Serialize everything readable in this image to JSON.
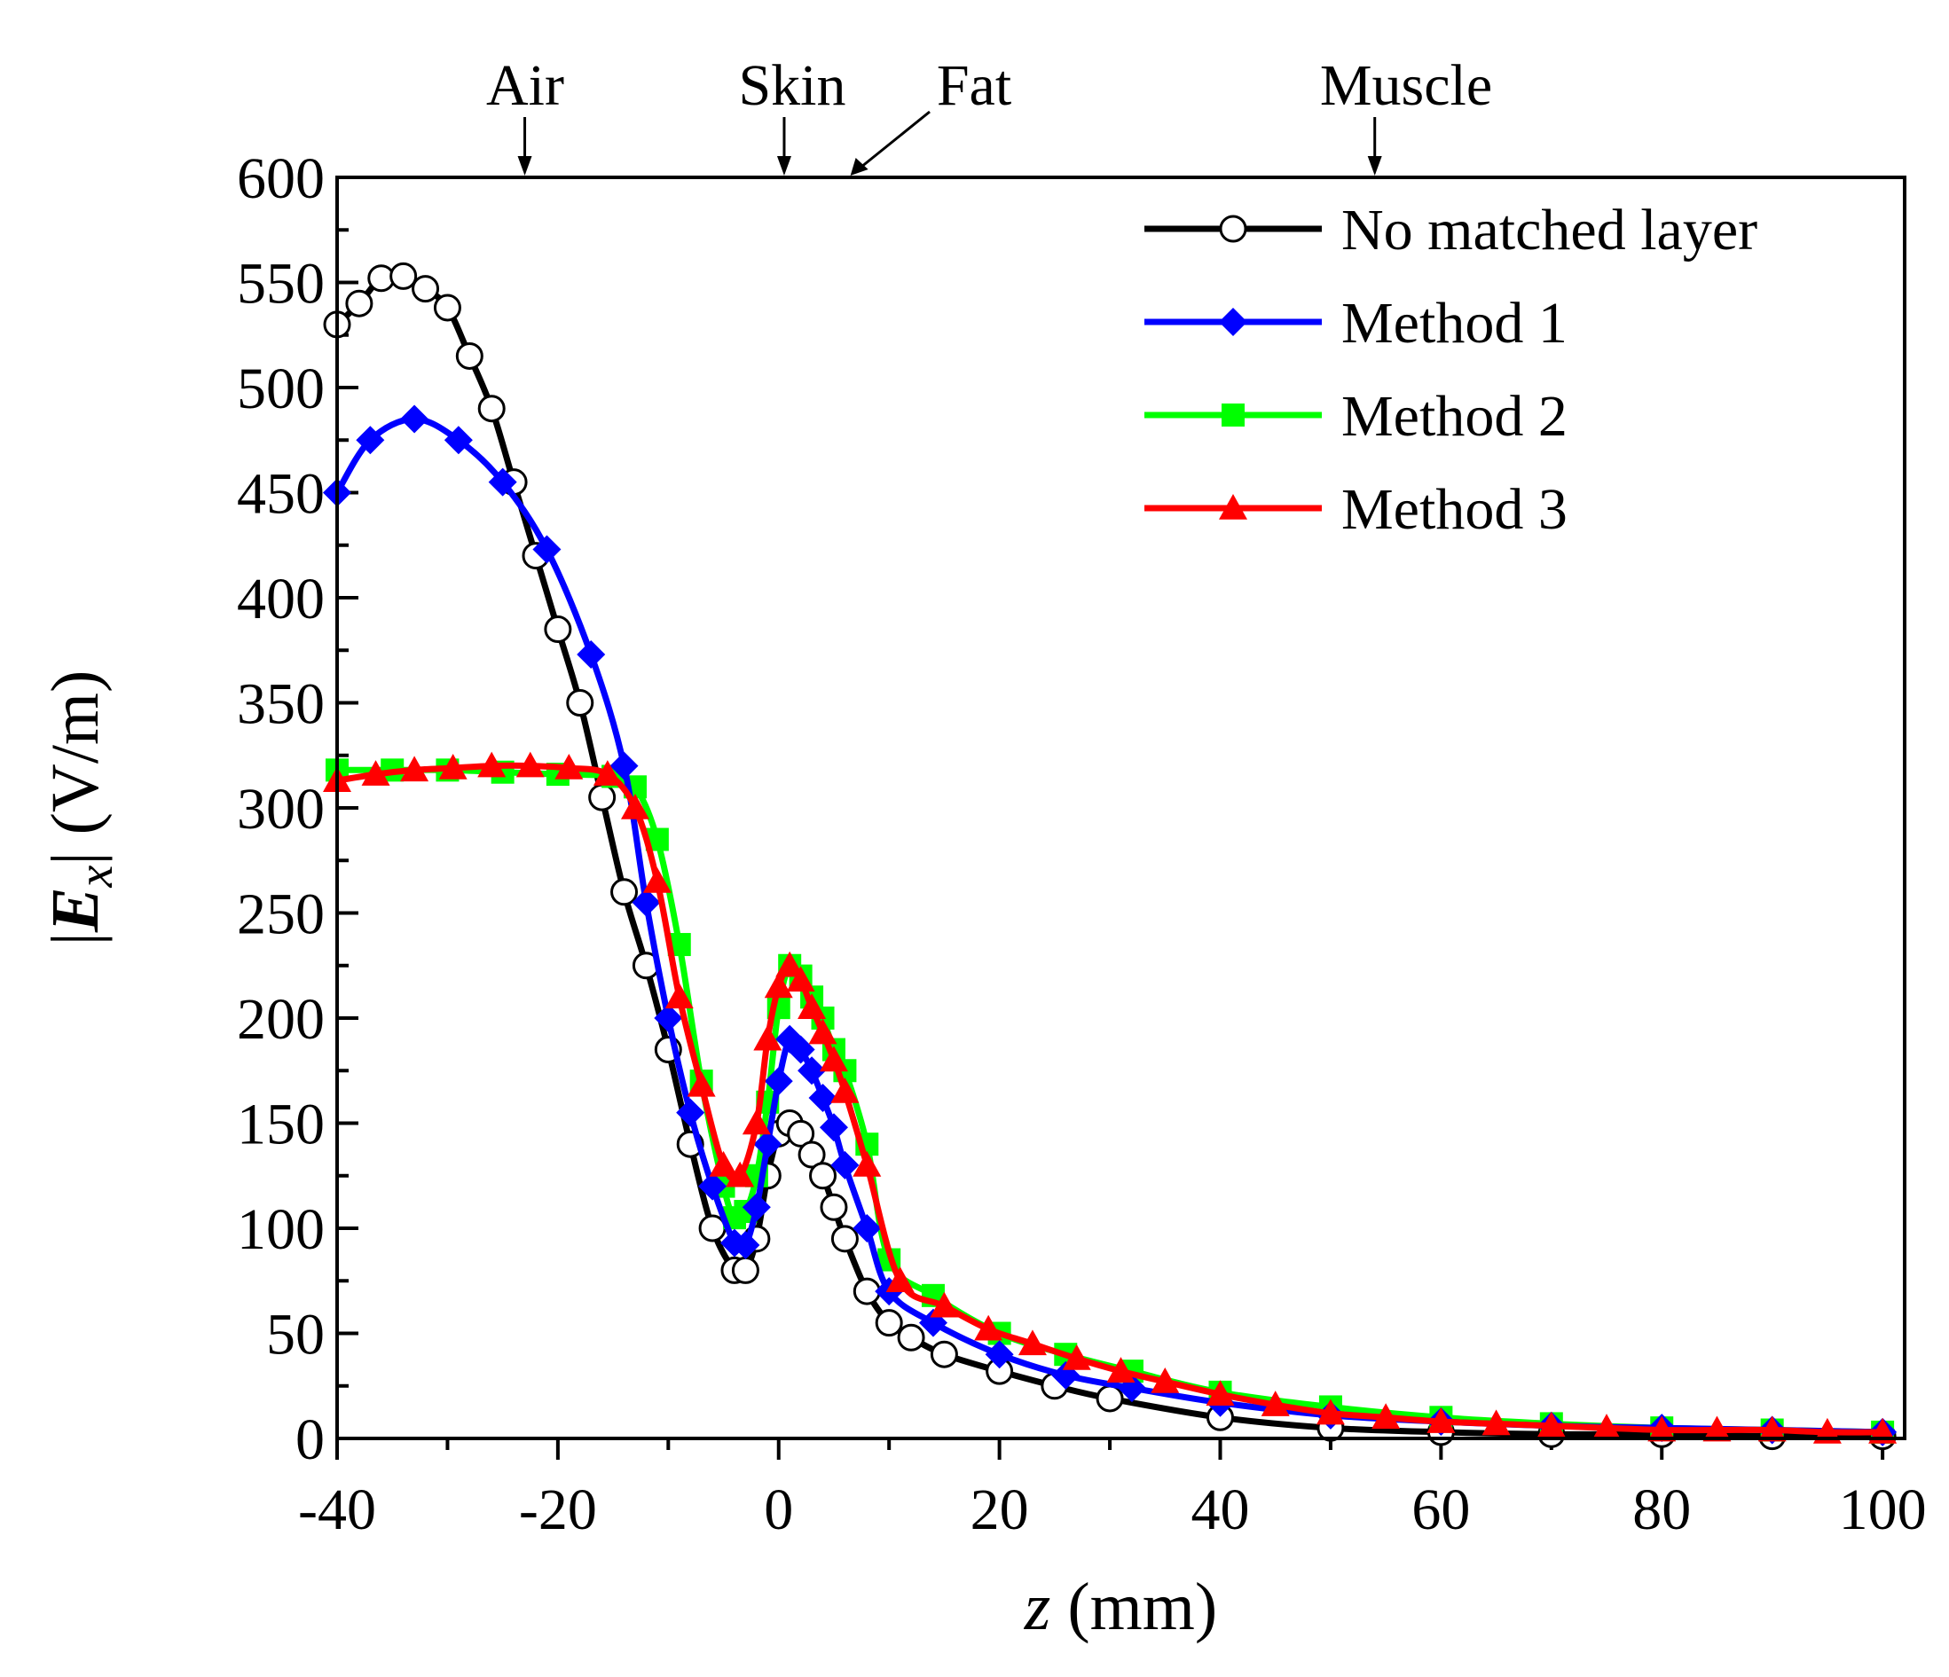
{
  "chart_data": {
    "type": "line",
    "title": "",
    "xlabel": "z (mm)",
    "xlabel_parts": {
      "var": "z",
      "unit": " (mm)"
    },
    "ylabel": "|Ex| (V/m)",
    "ylabel_parts": {
      "bar_open": "|",
      "var": "E",
      "sub": "x",
      "bar_close": "|",
      "unit": " (V/m)"
    },
    "xlim": [
      -40,
      102
    ],
    "ylim": [
      0,
      600
    ],
    "xticks": [
      -40,
      -20,
      0,
      20,
      40,
      60,
      80,
      100
    ],
    "yticks": [
      0,
      50,
      100,
      150,
      200,
      250,
      300,
      350,
      400,
      450,
      500,
      550,
      600
    ],
    "grid": false,
    "legend_position": "top-right",
    "layer_annotations": [
      {
        "label": "Air",
        "z": -23
      },
      {
        "label": "Skin",
        "z": 0.5
      },
      {
        "label": "Fat",
        "z": 6.5
      },
      {
        "label": "Muscle",
        "z": 54
      }
    ],
    "series": [
      {
        "name": "No matched layer",
        "color": "#000000",
        "marker": "circle",
        "marker_fill": "#ffffff",
        "x": [
          -40,
          -38,
          -36,
          -34,
          -32,
          -30,
          -28,
          -26,
          -24,
          -22,
          -20,
          -18,
          -16,
          -14,
          -12,
          -10,
          -8,
          -6,
          -4,
          -3,
          -2,
          -1,
          0,
          1,
          2,
          3,
          4,
          5,
          6,
          8,
          10,
          12,
          15,
          20,
          25,
          30,
          40,
          50,
          60,
          70,
          80,
          90,
          100
        ],
        "values": [
          530,
          540,
          552,
          553,
          547,
          538,
          515,
          490,
          455,
          420,
          385,
          350,
          305,
          260,
          225,
          185,
          140,
          100,
          80,
          80,
          95,
          125,
          145,
          150,
          145,
          135,
          125,
          110,
          95,
          70,
          55,
          48,
          40,
          32,
          25,
          19,
          10,
          5,
          3,
          2,
          2,
          1,
          1
        ]
      },
      {
        "name": "Method 1",
        "color": "#0000ff",
        "marker": "diamond",
        "x": [
          -40,
          -37,
          -33,
          -29,
          -25,
          -21,
          -17,
          -14,
          -12,
          -10,
          -8,
          -6,
          -4,
          -3,
          -2,
          -1,
          0,
          1,
          2,
          3,
          4,
          5,
          6,
          8,
          10,
          14,
          20,
          26,
          32,
          40,
          50,
          60,
          70,
          80,
          90,
          100
        ],
        "values": [
          450,
          475,
          485,
          475,
          455,
          423,
          373,
          320,
          255,
          200,
          155,
          120,
          93,
          92,
          110,
          140,
          170,
          190,
          185,
          175,
          162,
          148,
          130,
          100,
          70,
          55,
          40,
          30,
          24,
          17,
          11,
          8,
          6,
          5,
          4,
          3
        ]
      },
      {
        "name": "Method 2",
        "color": "#00ff00",
        "marker": "square",
        "x": [
          -40,
          -35,
          -30,
          -25,
          -20,
          -15,
          -13,
          -11,
          -9,
          -7,
          -5,
          -4,
          -3,
          -2,
          -1,
          0,
          1,
          2,
          3,
          4,
          5,
          6,
          8,
          10,
          14,
          20,
          26,
          32,
          40,
          50,
          60,
          70,
          80,
          90,
          100
        ],
        "values": [
          318,
          318,
          318,
          317,
          316,
          315,
          310,
          285,
          235,
          170,
          120,
          105,
          108,
          125,
          160,
          205,
          225,
          220,
          210,
          200,
          185,
          175,
          140,
          85,
          68,
          50,
          40,
          32,
          22,
          15,
          10,
          7,
          5,
          4,
          3
        ]
      },
      {
        "name": "Method 3",
        "color": "#ff0000",
        "marker": "triangle",
        "x": [
          -40,
          -36.5,
          -33,
          -29.5,
          -26,
          -22.5,
          -19,
          -15.5,
          -13,
          -11,
          -9,
          -7,
          -5,
          -3.5,
          -2,
          -1,
          0,
          1,
          2,
          3,
          4,
          5,
          6,
          8,
          11,
          15,
          19,
          23,
          27,
          31,
          35,
          40,
          45,
          50,
          55,
          60,
          65,
          70,
          75,
          80,
          85,
          90,
          95,
          100
        ],
        "values": [
          313,
          316,
          318,
          319,
          320,
          320,
          319,
          316,
          300,
          265,
          210,
          168,
          130,
          125,
          150,
          190,
          215,
          225,
          218,
          205,
          193,
          180,
          165,
          130,
          75,
          63,
          52,
          45,
          38,
          32,
          27,
          21,
          16,
          12,
          10,
          8,
          7,
          6,
          5,
          4,
          4,
          4,
          3,
          3
        ]
      }
    ]
  }
}
